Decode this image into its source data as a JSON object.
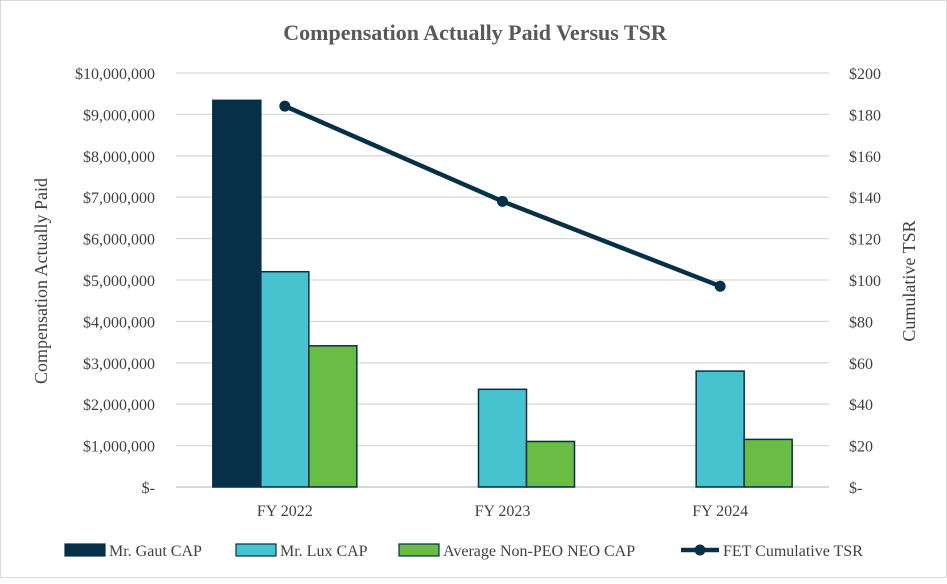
{
  "chart_data": {
    "type": "bar",
    "title": "Compensation Actually Paid Versus TSR",
    "ylabel": "Compensation Actually Paid",
    "y2label": "Cumulative TSR",
    "categories": [
      "FY 2022",
      "FY 2023",
      "FY 2024"
    ],
    "ylim": [
      0,
      10000000
    ],
    "y2lim": [
      0,
      200
    ],
    "yticks": [
      "$-",
      "$1,000,000",
      "$2,000,000",
      "$3,000,000",
      "$4,000,000",
      "$5,000,000",
      "$6,000,000",
      "$7,000,000",
      "$8,000,000",
      "$9,000,000",
      "$10,000,000"
    ],
    "y2ticks": [
      "$-",
      "$20",
      "$40",
      "$60",
      "$80",
      "$100",
      "$120",
      "$140",
      "$160",
      "$180",
      "$200"
    ],
    "grid": true,
    "legend_position": "bottom",
    "series": [
      {
        "name": "Mr. Gaut CAP",
        "type": "bar",
        "axis": "left",
        "color": "#053047",
        "values": [
          9340000,
          null,
          null
        ]
      },
      {
        "name": "Mr. Lux CAP",
        "type": "bar",
        "axis": "left",
        "color": "#46c3cf",
        "values": [
          5200000,
          2360000,
          2800000
        ]
      },
      {
        "name": "Average Non-PEO NEO CAP",
        "type": "bar",
        "axis": "left",
        "color": "#69bd45",
        "values": [
          3410000,
          1100000,
          1150000
        ]
      },
      {
        "name": "FET Cumulative TSR",
        "type": "line",
        "axis": "right",
        "color": "#053047",
        "values": [
          184,
          138,
          97
        ]
      }
    ]
  }
}
